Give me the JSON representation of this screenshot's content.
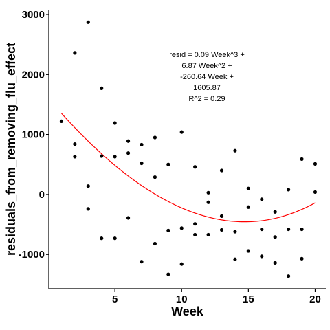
{
  "chart_data": {
    "type": "scatter",
    "xlabel": "Week",
    "ylabel": "residuals_from_removing_flu_effect",
    "xlim": [
      0.05,
      20.8
    ],
    "ylim": [
      -1570,
      3080
    ],
    "x_ticks": [
      5,
      10,
      15,
      20
    ],
    "y_ticks": [
      -1000,
      0,
      1000,
      2000,
      3000
    ],
    "grid": false,
    "points": [
      [
        1,
        1220
      ],
      [
        2,
        2360
      ],
      [
        2,
        840
      ],
      [
        2,
        630
      ],
      [
        3,
        2870
      ],
      [
        3,
        140
      ],
      [
        3,
        -240
      ],
      [
        4,
        1770
      ],
      [
        4,
        640
      ],
      [
        4,
        -730
      ],
      [
        5,
        1190
      ],
      [
        5,
        630
      ],
      [
        5,
        -730
      ],
      [
        6,
        890
      ],
      [
        6,
        690
      ],
      [
        6,
        -390
      ],
      [
        7,
        830
      ],
      [
        7,
        520
      ],
      [
        7,
        -1120
      ],
      [
        8,
        950
      ],
      [
        8,
        290
      ],
      [
        8,
        -820
      ],
      [
        9,
        500
      ],
      [
        9,
        -600
      ],
      [
        9,
        -1330
      ],
      [
        10,
        1040
      ],
      [
        10,
        -560
      ],
      [
        10,
        -1160
      ],
      [
        11,
        460
      ],
      [
        11,
        -490
      ],
      [
        11,
        -670
      ],
      [
        12,
        30
      ],
      [
        12,
        -130
      ],
      [
        12,
        -670
      ],
      [
        13,
        400
      ],
      [
        13,
        -360
      ],
      [
        13,
        -590
      ],
      [
        14,
        730
      ],
      [
        14,
        -620
      ],
      [
        14,
        -1080
      ],
      [
        15,
        100
      ],
      [
        15,
        -210
      ],
      [
        15,
        -940
      ],
      [
        16,
        -80
      ],
      [
        16,
        -580
      ],
      [
        16,
        -1030
      ],
      [
        17,
        -290
      ],
      [
        17,
        -710
      ],
      [
        17,
        -1140
      ],
      [
        18,
        80
      ],
      [
        18,
        -580
      ],
      [
        18,
        -1360
      ],
      [
        19,
        590
      ],
      [
        19,
        -580
      ],
      [
        19,
        -1070
      ],
      [
        20,
        510
      ],
      [
        20,
        40
      ]
    ],
    "fit": {
      "coefficients": {
        "a3": 0.09,
        "a2": 6.87,
        "a1": -260.64,
        "a0": 1605.87
      },
      "x_range": [
        1,
        20
      ],
      "color": "#ff0000"
    },
    "annotation": [
      "resid = 0.09 Week^3 +",
      "6.87 Week^2 +",
      "-260.64 Week +",
      "1605.87",
      "R^2 = 0.29"
    ],
    "point_color": "#000000"
  }
}
